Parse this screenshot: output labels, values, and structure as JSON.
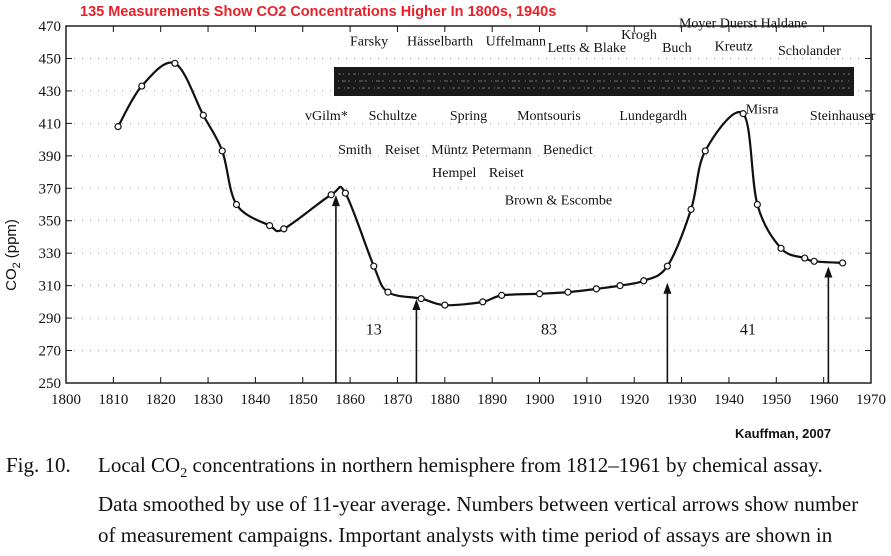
{
  "chart_data": {
    "type": "line",
    "title": "135 Measurements Show CO2 Concentrations Higher In 1800s, 1940s",
    "title_color": "#e8202a",
    "ylabel": "CO2 (ppm)",
    "ylabel_main": "CO",
    "ylabel_sub": "2",
    "ylabel_unit": "(ppm)",
    "xlabel": "",
    "xlim": [
      1800,
      1970
    ],
    "ylim": [
      250,
      470
    ],
    "x_ticks": [
      1800,
      1810,
      1820,
      1830,
      1840,
      1850,
      1860,
      1870,
      1880,
      1890,
      1900,
      1910,
      1920,
      1930,
      1940,
      1950,
      1960,
      1970
    ],
    "y_ticks": [
      250,
      270,
      290,
      310,
      330,
      350,
      370,
      390,
      410,
      430,
      450,
      470
    ],
    "series": [
      {
        "name": "Local CO2 concentration (11-year average)",
        "points": [
          [
            1811,
            408
          ],
          [
            1816,
            433
          ],
          [
            1823,
            447
          ],
          [
            1829,
            415
          ],
          [
            1833,
            393
          ],
          [
            1836,
            360
          ],
          [
            1843,
            347
          ],
          [
            1846,
            345
          ],
          [
            1856,
            366
          ],
          [
            1859,
            367
          ],
          [
            1865,
            322
          ],
          [
            1868,
            306
          ],
          [
            1875,
            302
          ],
          [
            1880,
            298
          ],
          [
            1888,
            300
          ],
          [
            1892,
            304
          ],
          [
            1900,
            305
          ],
          [
            1906,
            306
          ],
          [
            1912,
            308
          ],
          [
            1917,
            310
          ],
          [
            1922,
            313
          ],
          [
            1927,
            322
          ],
          [
            1932,
            357
          ],
          [
            1935,
            393
          ],
          [
            1943,
            416
          ],
          [
            1946,
            360
          ],
          [
            1951,
            333
          ],
          [
            1956,
            327
          ],
          [
            1958,
            325
          ],
          [
            1964,
            324
          ]
        ]
      }
    ],
    "arrows": [
      {
        "x": 1857,
        "top": 367
      },
      {
        "x": 1874,
        "top": 303
      },
      {
        "x": 1927,
        "top": 313
      },
      {
        "x": 1961,
        "top": 323
      }
    ],
    "counts": [
      {
        "label": "13",
        "x": 1865,
        "y": 280
      },
      {
        "label": "83",
        "x": 1902,
        "y": 280
      },
      {
        "label": "41",
        "x": 1944,
        "y": 280
      }
    ],
    "analysts": [
      {
        "label": "Farsky",
        "x": 1864,
        "y": 458
      },
      {
        "label": "Hässelbarth",
        "x": 1879,
        "y": 458
      },
      {
        "label": "Uffelmann",
        "x": 1895,
        "y": 458
      },
      {
        "label": "Letts & Blake",
        "x": 1910,
        "y": 454
      },
      {
        "label": "Krogh",
        "x": 1921,
        "y": 462
      },
      {
        "label": "Moyer Duerst Haldane",
        "x": 1943,
        "y": 469
      },
      {
        "label": "Buch",
        "x": 1929,
        "y": 454
      },
      {
        "label": "Kreutz",
        "x": 1941,
        "y": 455
      },
      {
        "label": "Scholander",
        "x": 1957,
        "y": 452
      },
      {
        "label": "vGilm*",
        "x": 1855,
        "y": 412
      },
      {
        "label": "Schultze",
        "x": 1869,
        "y": 412
      },
      {
        "label": "Spring",
        "x": 1885,
        "y": 412
      },
      {
        "label": "Montsouris",
        "x": 1902,
        "y": 412
      },
      {
        "label": "Lundegardh",
        "x": 1924,
        "y": 412
      },
      {
        "label": "Misra",
        "x": 1947,
        "y": 416
      },
      {
        "label": "Steinhauser",
        "x": 1964,
        "y": 412
      },
      {
        "label": "Smith",
        "x": 1861,
        "y": 391
      },
      {
        "label": "Reiset",
        "x": 1871,
        "y": 391
      },
      {
        "label": "Müntz",
        "x": 1881,
        "y": 391
      },
      {
        "label": "Petermann",
        "x": 1892,
        "y": 391
      },
      {
        "label": "Benedict",
        "x": 1906,
        "y": 391
      },
      {
        "label": "Hempel",
        "x": 1882,
        "y": 377
      },
      {
        "label": "Reiset",
        "x": 1893,
        "y": 377
      },
      {
        "label": "Brown & Escombe",
        "x": 1904,
        "y": 360
      }
    ],
    "line_color": "#111111",
    "marker_fill": "#ffffff"
  },
  "credit": "Kauffman, 2007",
  "caption": {
    "label": "Fig. 10.",
    "line1": "Local CO",
    "line1_sub": "2",
    "line1_rest": " concentrations in northern hemisphere from 1812–1961 by chemical assay.",
    "line2": "Data smoothed by use of 11-year average. Numbers between vertical arrows show number",
    "line3": "of measurement campaigns. Important analysts with time period of assays are shown in"
  }
}
